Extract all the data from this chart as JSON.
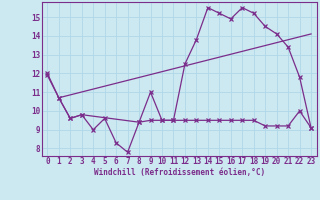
{
  "line1_x": [
    0,
    1,
    2,
    3,
    4,
    5,
    6,
    7,
    8,
    9,
    10,
    11,
    12,
    13,
    14,
    15,
    16,
    17,
    18,
    19,
    20,
    21,
    22,
    23
  ],
  "line1_y": [
    12.0,
    10.7,
    9.6,
    9.8,
    9.0,
    9.6,
    8.3,
    7.8,
    9.4,
    11.0,
    9.5,
    9.5,
    12.5,
    13.8,
    15.5,
    15.2,
    14.9,
    15.5,
    15.2,
    14.5,
    14.1,
    13.4,
    11.8,
    9.1
  ],
  "line2_x": [
    1,
    23
  ],
  "line2_y": [
    10.7,
    14.1
  ],
  "line3_x": [
    0,
    1,
    2,
    3,
    8,
    9,
    10,
    11,
    12,
    13,
    14,
    15,
    16,
    17,
    18,
    19,
    20,
    21,
    22,
    23
  ],
  "line3_y": [
    11.9,
    10.7,
    9.6,
    9.8,
    9.4,
    9.5,
    9.5,
    9.5,
    9.5,
    9.5,
    9.5,
    9.5,
    9.5,
    9.5,
    9.5,
    9.2,
    9.2,
    9.2,
    10.0,
    9.1
  ],
  "bg_color": "#cce8f0",
  "grid_color": "#b0d8e8",
  "line_color": "#7b2d8b",
  "xlabel": "Windchill (Refroidissement éolien,°C)",
  "xlim": [
    -0.5,
    23.5
  ],
  "ylim": [
    7.6,
    15.8
  ],
  "xticks": [
    0,
    1,
    2,
    3,
    4,
    5,
    6,
    7,
    8,
    9,
    10,
    11,
    12,
    13,
    14,
    15,
    16,
    17,
    18,
    19,
    20,
    21,
    22,
    23
  ],
  "yticks": [
    8,
    9,
    10,
    11,
    12,
    13,
    14,
    15
  ]
}
